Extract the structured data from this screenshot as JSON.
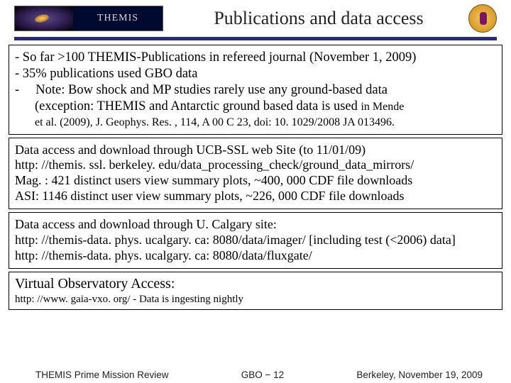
{
  "header": {
    "logo_text": "THEMIS",
    "title": "Publications and data access"
  },
  "box1": {
    "line1": "- So far >100 THEMIS-Publications in refereed journal (November 1, 2009)",
    "line2": "- 35% publications used GBO data",
    "line3a": "-",
    "line3b": "Note: Bow shock and MP studies rarely use any ground-based data",
    "line4": "(exception: THEMIS and Antarctic ground based data is used ",
    "line4_small": "in Mende",
    "line5_small": "et al. (2009), J. Geophys. Res. , 114, A 00 C 23, doi: 10. 1029/2008 JA 013496."
  },
  "box2": {
    "line1": "Data access and download through UCB-SSL web Site (to 11/01/09)",
    "line2": "http: //themis. ssl. berkeley. edu/data_processing_check/ground_data_mirrors/",
    "line3": "Mag. : 421 distinct users view summary plots, ~400, 000 CDF file downloads",
    "line4": "ASI: 1146 distinct user view summary plots, ~226, 000 CDF file downloads"
  },
  "box3": {
    "line1": "Data access and download through U. Calgary site:",
    "line2": "http: //themis-data. phys. ucalgary. ca: 8080/data/imager/   [including test (<2006) data]",
    "line3": "http: //themis-data. phys. ucalgary. ca: 8080/data/fluxgate/"
  },
  "box4": {
    "title": "Virtual Observatory Access:",
    "url": "http: //www. gaia-vxo. org/   - Data is ingesting nightly"
  },
  "footer": {
    "left": "THEMIS Prime Mission Review",
    "center": "GBO − 12",
    "right": "Berkeley, November 19, 2009"
  },
  "colors": {
    "hr_bar": "#2a2a7a",
    "text": "#000000",
    "background": "#ffffff"
  }
}
